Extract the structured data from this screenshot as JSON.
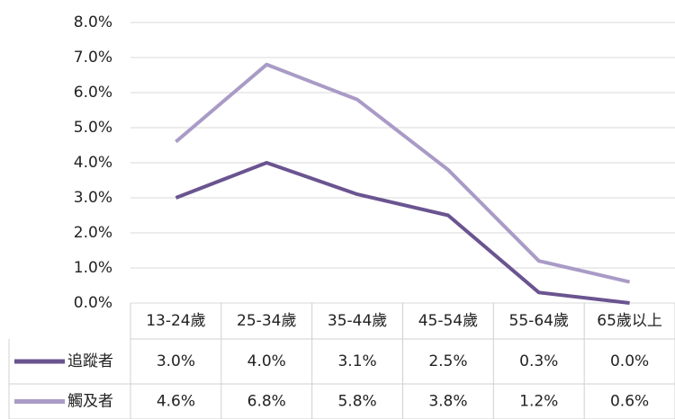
{
  "chart_data": {
    "type": "line",
    "categories": [
      "13-24歲",
      "25-34歲",
      "35-44歲",
      "45-54歲",
      "55-64歲",
      "65歲以上"
    ],
    "series": [
      {
        "name": "追蹤者",
        "color": "#6a5490",
        "values": [
          3.0,
          4.0,
          3.1,
          2.5,
          0.3,
          0.0
        ],
        "value_labels": [
          "3.0%",
          "4.0%",
          "3.1%",
          "2.5%",
          "0.3%",
          "0.0%"
        ]
      },
      {
        "name": "觸及者",
        "color": "#a99bc6",
        "values": [
          4.6,
          6.8,
          5.8,
          3.8,
          1.2,
          0.6
        ],
        "value_labels": [
          "4.6%",
          "6.8%",
          "5.8%",
          "3.8%",
          "1.2%",
          "0.6%"
        ]
      }
    ],
    "ylim": [
      0,
      8
    ],
    "yticks": [
      {
        "value": 0,
        "label": "0.0%"
      },
      {
        "value": 1,
        "label": "1.0%"
      },
      {
        "value": 2,
        "label": "2.0%"
      },
      {
        "value": 3,
        "label": "3.0%"
      },
      {
        "value": 4,
        "label": "4.0%"
      },
      {
        "value": 5,
        "label": "5.0%"
      },
      {
        "value": 6,
        "label": "6.0%"
      },
      {
        "value": 7,
        "label": "7.0%"
      },
      {
        "value": 8,
        "label": "8.0%"
      }
    ],
    "grid": true
  }
}
